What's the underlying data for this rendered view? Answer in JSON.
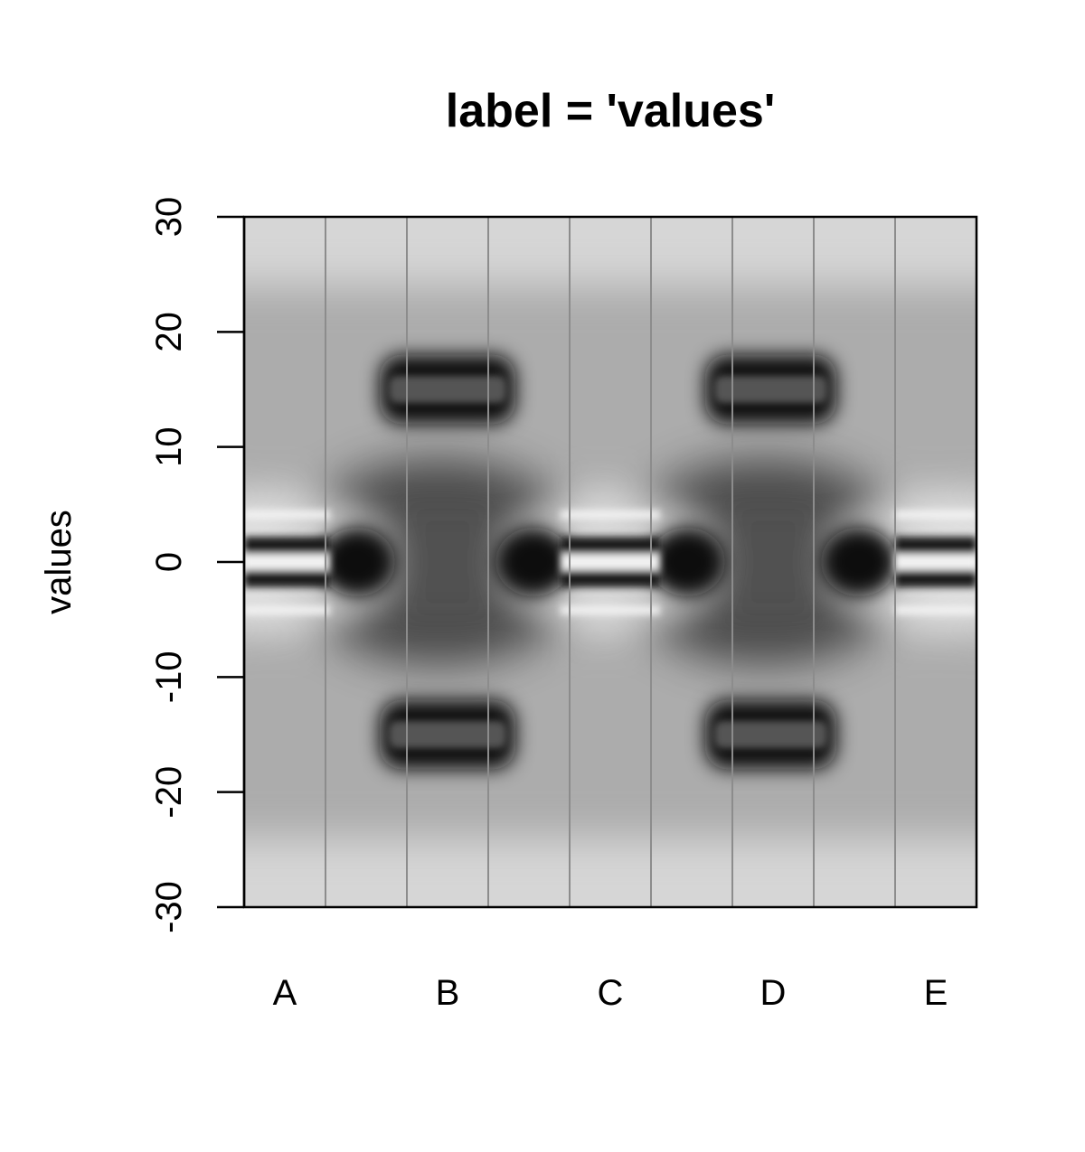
{
  "chart_data": {
    "type": "heatmap",
    "title": "label = 'values'",
    "ylabel": "values",
    "xlabel": "",
    "ylim": [
      -30,
      30
    ],
    "yticks": [
      -30,
      -20,
      -10,
      0,
      10,
      20,
      30
    ],
    "categories": [
      "A",
      "B",
      "C",
      "D",
      "E"
    ],
    "colors": {
      "background": "#ffffff",
      "light": "#d6d6d6",
      "mid": "#8a8a8a",
      "dark": "#111111",
      "divider": "#8c8c8c",
      "axis": "#000000"
    }
  }
}
